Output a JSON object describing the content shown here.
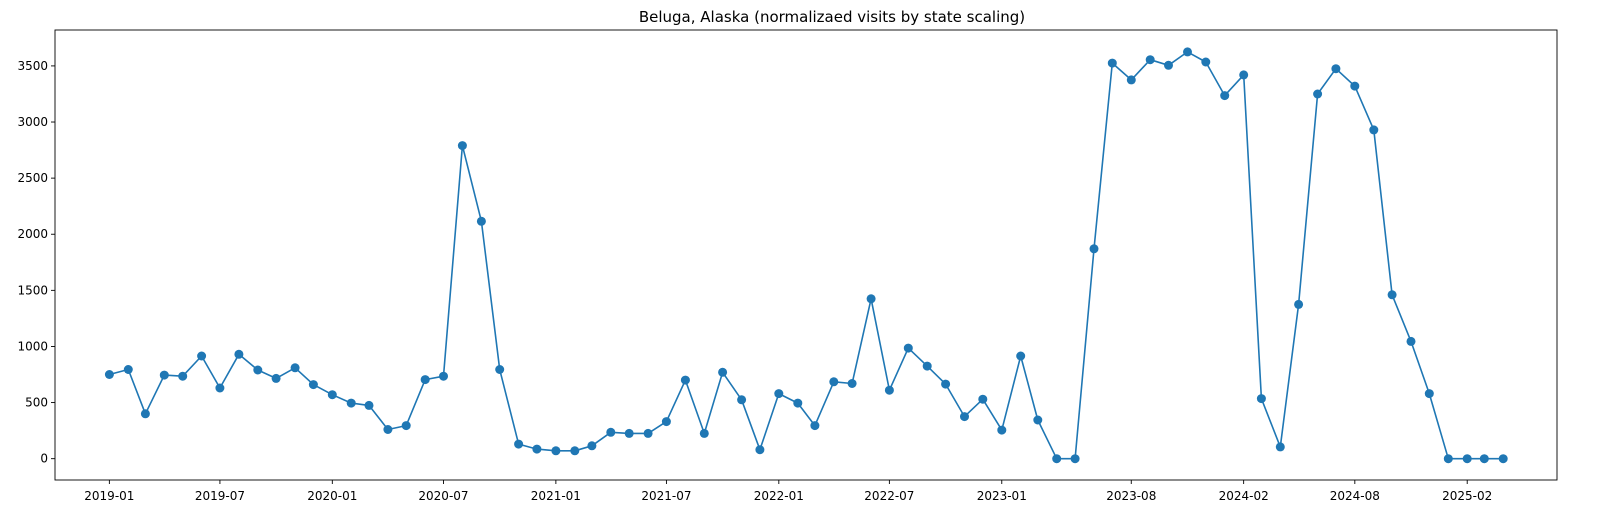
{
  "chart_data": {
    "type": "line",
    "title": "Beluga, Alaska (normalizaed visits by state scaling)",
    "xlabel": "",
    "ylabel": "",
    "markers": true,
    "grid": false,
    "color": "#1f77b4",
    "xlim": [
      "2018-10-04",
      "2025-06-28"
    ],
    "ylim": [
      -190,
      3820
    ],
    "x_ticks": [
      "2019-01",
      "2019-07",
      "2020-01",
      "2020-07",
      "2021-01",
      "2021-07",
      "2022-01",
      "2022-07",
      "2023-01",
      "2023-08",
      "2024-02",
      "2024-08",
      "2025-02"
    ],
    "y_ticks": [
      0,
      500,
      1000,
      1500,
      2000,
      2500,
      3000,
      3500
    ],
    "series": [
      {
        "x": [
          "2019-01",
          "2019-02",
          "2019-03",
          "2019-04",
          "2019-05",
          "2019-06",
          "2019-07",
          "2019-08",
          "2019-09",
          "2019-10",
          "2019-11",
          "2019-12",
          "2020-01",
          "2020-02",
          "2020-03",
          "2020-04",
          "2020-05",
          "2020-06",
          "2020-07",
          "2020-08",
          "2020-09",
          "2020-10",
          "2020-11",
          "2020-12",
          "2021-01",
          "2021-02",
          "2021-03",
          "2021-04",
          "2021-05",
          "2021-06",
          "2021-07",
          "2021-08",
          "2021-09",
          "2021-10",
          "2021-11",
          "2021-12",
          "2022-01",
          "2022-02",
          "2022-03",
          "2022-04",
          "2022-05",
          "2022-06",
          "2022-07",
          "2022-08",
          "2022-09",
          "2022-10",
          "2022-11",
          "2022-12",
          "2023-01",
          "2023-02",
          "2023-03",
          "2023-04",
          "2023-05",
          "2023-06",
          "2023-07",
          "2023-08",
          "2023-09",
          "2023-10",
          "2023-11",
          "2023-12",
          "2024-01",
          "2024-02",
          "2024-03",
          "2024-04",
          "2024-05",
          "2024-06",
          "2024-07",
          "2024-08",
          "2024-09",
          "2024-10",
          "2024-11",
          "2024-12",
          "2025-01",
          "2025-02",
          "2025-03",
          "2025-04"
        ],
        "y": [
          750,
          795,
          400,
          745,
          735,
          915,
          630,
          930,
          790,
          715,
          810,
          660,
          570,
          495,
          475,
          260,
          295,
          705,
          735,
          2790,
          2115,
          795,
          130,
          85,
          70,
          70,
          115,
          235,
          225,
          225,
          330,
          700,
          225,
          770,
          525,
          80,
          580,
          495,
          295,
          685,
          670,
          1425,
          610,
          985,
          825,
          665,
          375,
          530,
          255,
          915,
          345,
          0,
          0,
          1870,
          3525,
          3375,
          3555,
          3505,
          3625,
          3535,
          3235,
          3420,
          535,
          105,
          1375,
          3250,
          3475,
          3320,
          2930,
          1460,
          1045,
          580,
          0,
          0,
          0,
          0
        ]
      }
    ]
  }
}
